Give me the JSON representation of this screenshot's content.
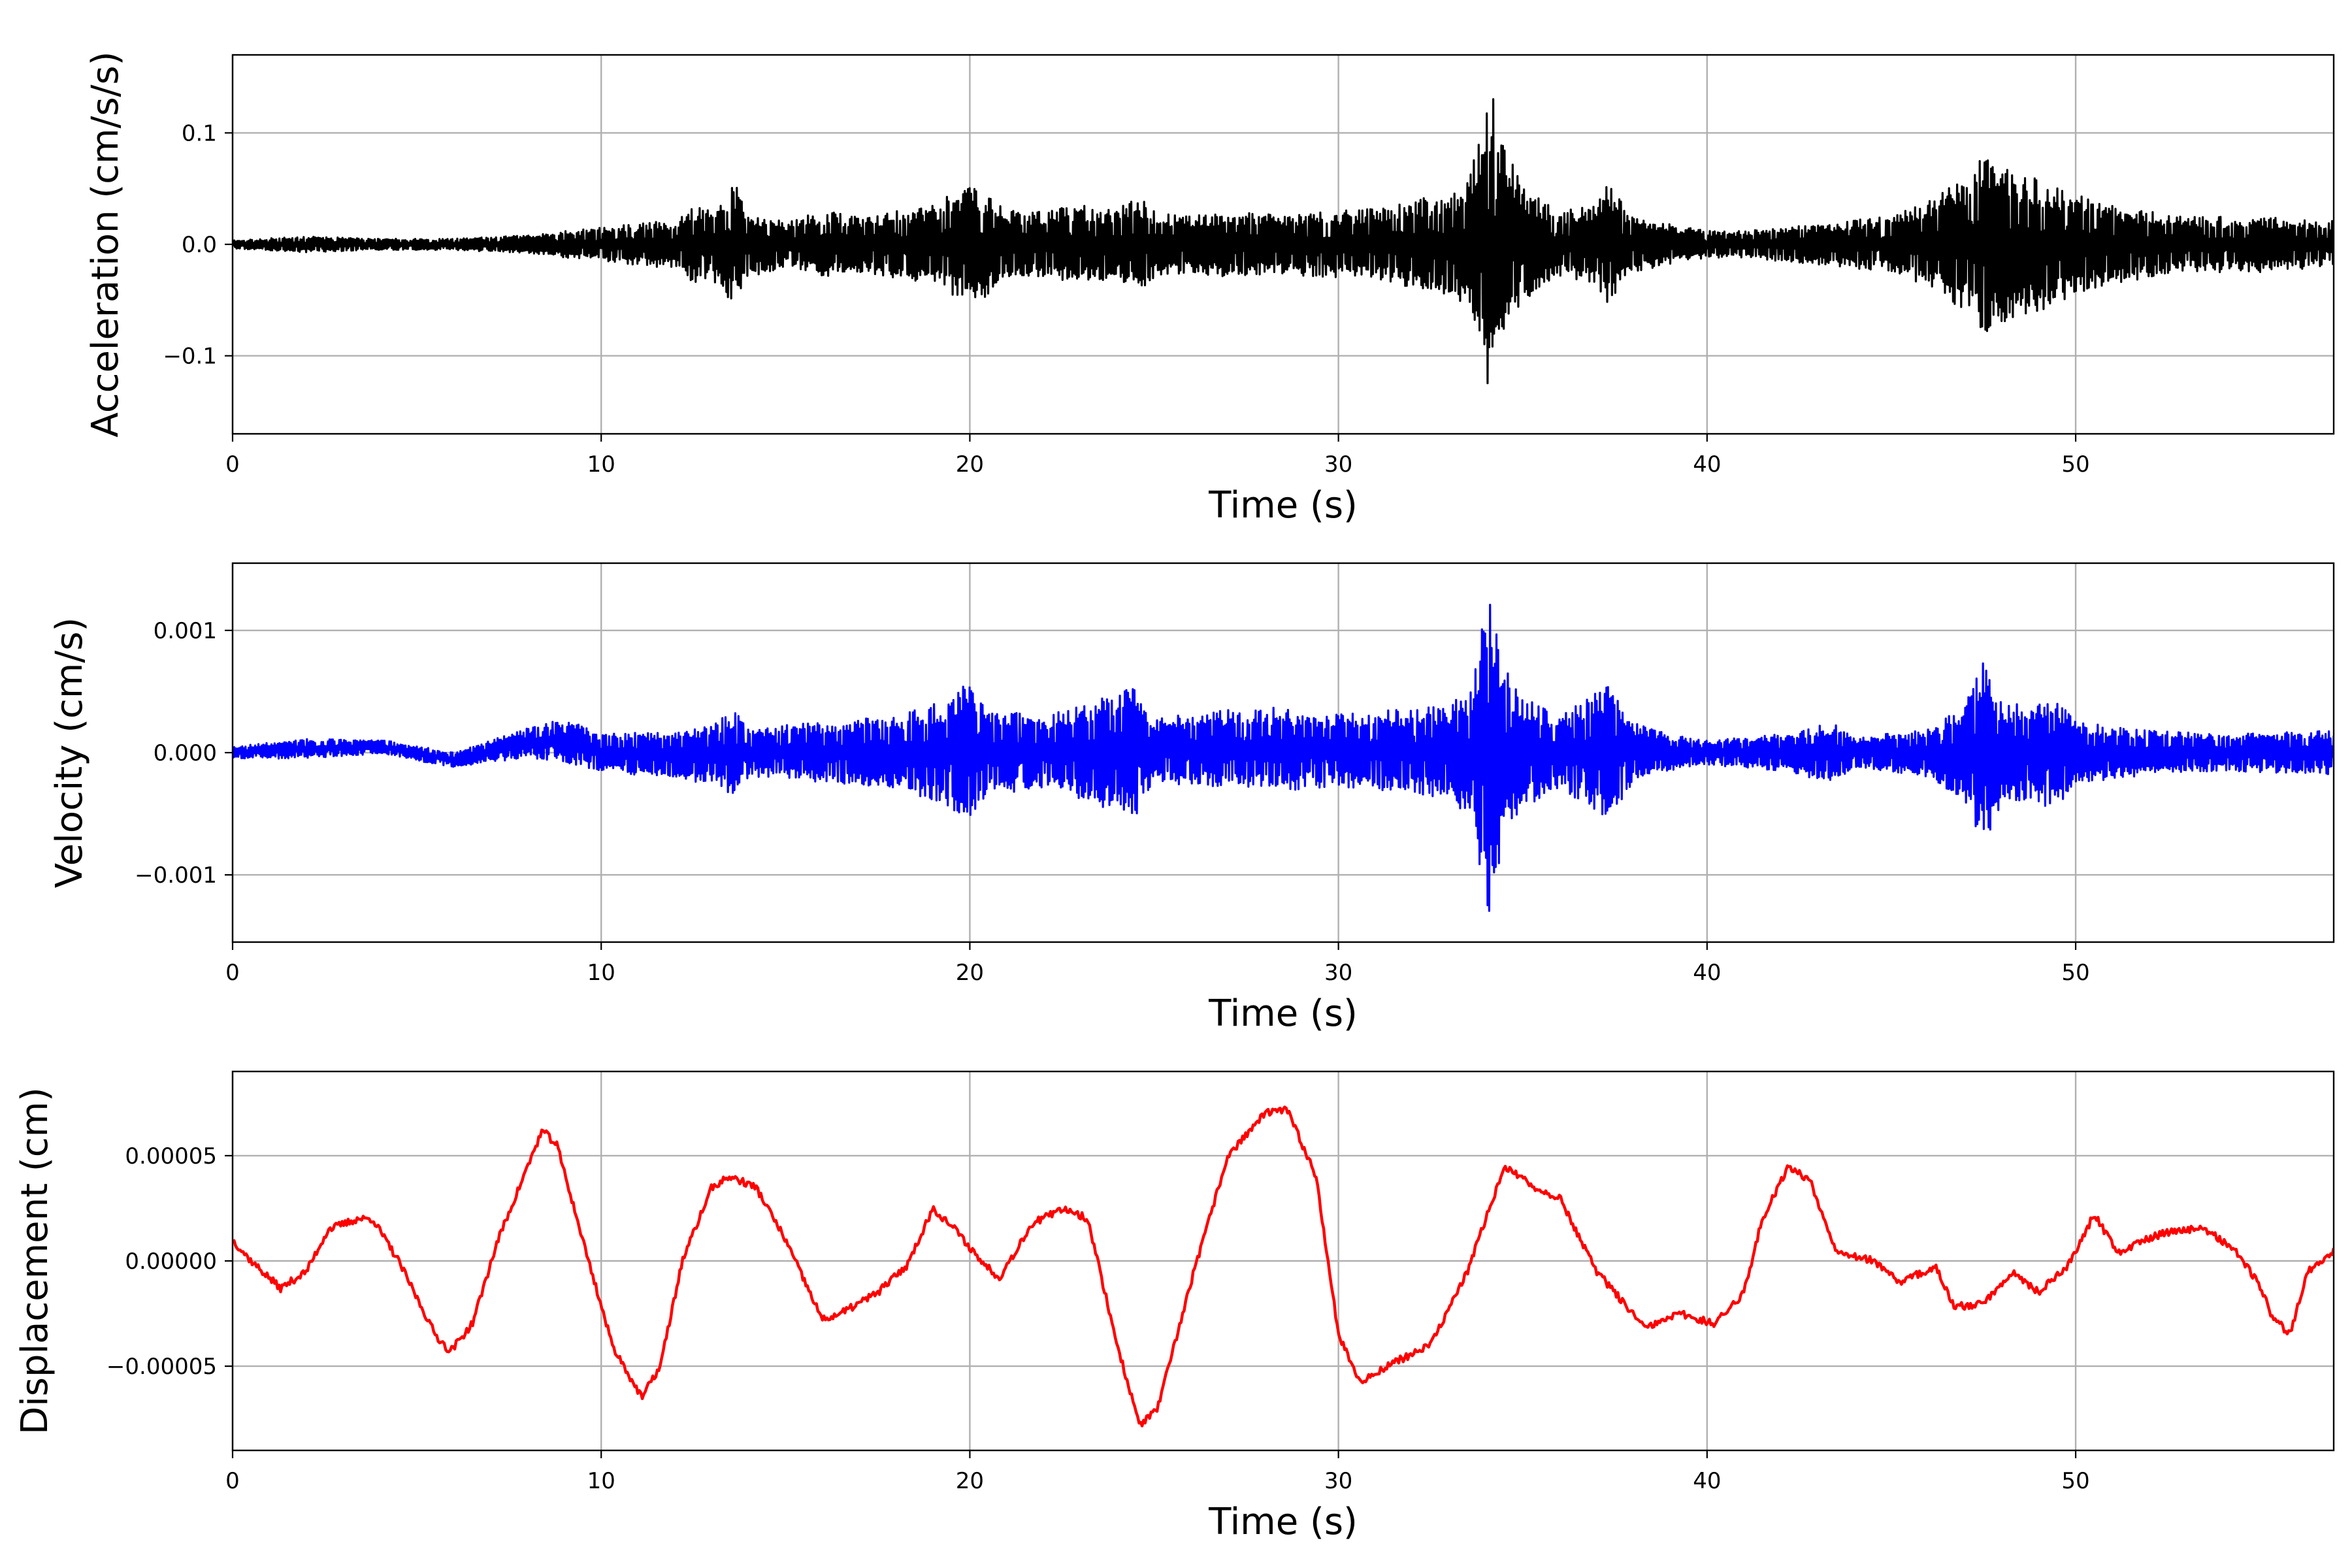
{
  "chart_data": [
    {
      "type": "line",
      "ylabel": "Acceleration (cm/s/s)",
      "xlabel": "Time (s)",
      "xlim": [
        0,
        57
      ],
      "ylim": [
        -0.17,
        0.17
      ],
      "x_ticks": [
        0,
        10,
        20,
        30,
        40,
        50
      ],
      "x_tick_labels": [
        "0",
        "10",
        "20",
        "30",
        "40",
        "50"
      ],
      "y_ticks": [
        -0.1,
        0.0,
        0.1
      ],
      "y_tick_labels": [
        "−0.1",
        "0.0",
        "0.1"
      ],
      "grid": true,
      "color": "#000000",
      "series": [
        {
          "envelope": [
            [
              0,
              0.004
            ],
            [
              2,
              0.007
            ],
            [
              4,
              0.005
            ],
            [
              6,
              0.005
            ],
            [
              8,
              0.008
            ],
            [
              9,
              0.012
            ],
            [
              10,
              0.015
            ],
            [
              12,
              0.022
            ],
            [
              12.5,
              0.035
            ],
            [
              13,
              0.03
            ],
            [
              13.6,
              0.058
            ],
            [
              14,
              0.03
            ],
            [
              15,
              0.02
            ],
            [
              16,
              0.03
            ],
            [
              17,
              0.025
            ],
            [
              18,
              0.03
            ],
            [
              19,
              0.035
            ],
            [
              19.5,
              0.045
            ],
            [
              20,
              0.058
            ],
            [
              20.5,
              0.045
            ],
            [
              21,
              0.03
            ],
            [
              22,
              0.03
            ],
            [
              23,
              0.035
            ],
            [
              24,
              0.03
            ],
            [
              24.5,
              0.045
            ],
            [
              25,
              0.03
            ],
            [
              26,
              0.025
            ],
            [
              27,
              0.03
            ],
            [
              28,
              0.028
            ],
            [
              29,
              0.028
            ],
            [
              30,
              0.03
            ],
            [
              31,
              0.032
            ],
            [
              32,
              0.04
            ],
            [
              33,
              0.045
            ],
            [
              33.6,
              0.065
            ],
            [
              34.1,
              0.145
            ],
            [
              34.5,
              0.09
            ],
            [
              35,
              0.05
            ],
            [
              36,
              0.03
            ],
            [
              37,
              0.035
            ],
            [
              37.3,
              0.055
            ],
            [
              38,
              0.025
            ],
            [
              39,
              0.018
            ],
            [
              40,
              0.012
            ],
            [
              41,
              0.012
            ],
            [
              42,
              0.015
            ],
            [
              43,
              0.018
            ],
            [
              44,
              0.022
            ],
            [
              45,
              0.025
            ],
            [
              46,
              0.04
            ],
            [
              47,
              0.06
            ],
            [
              47.5,
              0.085
            ],
            [
              48,
              0.07
            ],
            [
              49,
              0.06
            ],
            [
              50,
              0.045
            ],
            [
              51,
              0.035
            ],
            [
              52,
              0.03
            ],
            [
              53,
              0.025
            ],
            [
              54,
              0.025
            ],
            [
              55,
              0.025
            ],
            [
              56,
              0.022
            ],
            [
              57,
              0.022
            ]
          ]
        }
      ]
    },
    {
      "type": "line",
      "ylabel": "Velocity (cm/s)",
      "xlabel": "Time (s)",
      "xlim": [
        0,
        57
      ],
      "ylim": [
        -0.00155,
        0.00155
      ],
      "x_ticks": [
        0,
        10,
        20,
        30,
        40,
        50
      ],
      "x_tick_labels": [
        "0",
        "10",
        "20",
        "30",
        "40",
        "50"
      ],
      "y_ticks": [
        -0.001,
        0.0,
        0.001
      ],
      "y_tick_labels": [
        "−0.001",
        "0.000",
        "0.001"
      ],
      "grid": true,
      "color": "#0000ff",
      "series": [
        {
          "baseline": [
            [
              0,
              0.0
            ],
            [
              2,
              3e-05
            ],
            [
              4,
              5e-05
            ],
            [
              6,
              -6e-05
            ],
            [
              8,
              8e-05
            ],
            [
              9,
              0.0001
            ],
            [
              10,
              0.0
            ],
            [
              12,
              -2e-05
            ],
            [
              14,
              0.0
            ],
            [
              20,
              0.0
            ],
            [
              28,
              3e-05
            ],
            [
              34,
              0.0
            ],
            [
              40,
              0.0
            ],
            [
              47,
              0.0
            ],
            [
              57,
              0.0
            ]
          ],
          "envelope": [
            [
              0,
              5e-05
            ],
            [
              2,
              8e-05
            ],
            [
              4,
              6e-05
            ],
            [
              6,
              6e-05
            ],
            [
              8,
              0.00012
            ],
            [
              9,
              0.00018
            ],
            [
              10,
              0.00015
            ],
            [
              12,
              0.0002
            ],
            [
              13,
              0.00025
            ],
            [
              13.6,
              0.00035
            ],
            [
              14,
              0.0002
            ],
            [
              16,
              0.00025
            ],
            [
              18,
              0.0003
            ],
            [
              19.5,
              0.00045
            ],
            [
              20,
              0.0006
            ],
            [
              20.5,
              0.00035
            ],
            [
              22,
              0.0003
            ],
            [
              23,
              0.0004
            ],
            [
              24.5,
              0.00055
            ],
            [
              25,
              0.00025
            ],
            [
              26,
              0.0003
            ],
            [
              28,
              0.00035
            ],
            [
              30,
              0.0003
            ],
            [
              32,
              0.00035
            ],
            [
              33,
              0.0004
            ],
            [
              33.6,
              0.00055
            ],
            [
              34.1,
              0.00135
            ],
            [
              34.5,
              0.0007
            ],
            [
              35,
              0.00045
            ],
            [
              36,
              0.0003
            ],
            [
              37.3,
              0.00055
            ],
            [
              38,
              0.00025
            ],
            [
              39,
              0.00015
            ],
            [
              40,
              0.0001
            ],
            [
              42,
              0.00015
            ],
            [
              43.5,
              0.00025
            ],
            [
              44,
              0.00012
            ],
            [
              46,
              0.0002
            ],
            [
              47,
              0.0004
            ],
            [
              47.5,
              0.0008
            ],
            [
              48,
              0.0004
            ],
            [
              49,
              0.0004
            ],
            [
              49.4,
              0.0005
            ],
            [
              50,
              0.00025
            ],
            [
              52,
              0.00018
            ],
            [
              54,
              0.00015
            ],
            [
              57,
              0.00018
            ]
          ]
        }
      ]
    },
    {
      "type": "line",
      "ylabel": "Displacement (cm)",
      "xlabel": "Time (s)",
      "xlim": [
        0,
        57
      ],
      "ylim": [
        -9e-05,
        9e-05
      ],
      "x_ticks": [
        0,
        10,
        20,
        30,
        40,
        50
      ],
      "x_tick_labels": [
        "0",
        "10",
        "20",
        "30",
        "40",
        "50"
      ],
      "y_ticks": [
        -5e-05,
        0.0,
        5e-05
      ],
      "y_tick_labels": [
        "−0.00005",
        "0.00000",
        "0.00005"
      ],
      "grid": true,
      "color": "#ff0000",
      "series": [
        {
          "x": [
            0,
            0.5,
            1.3,
            2,
            2.6,
            3.4,
            3.8,
            4.5,
            5.5,
            5.9,
            6.5,
            7.2,
            8.4,
            8.8,
            9.5,
            10.3,
            11.1,
            11.6,
            12.2,
            13,
            13.5,
            14.2,
            15,
            16,
            16.5,
            17.5,
            18.3,
            19,
            19.6,
            20.3,
            20.8,
            21.7,
            22.6,
            23.2,
            24,
            24.6,
            25.1,
            26,
            27,
            28,
            28.6,
            29.4,
            30,
            30.6,
            31.3,
            32.5,
            33.5,
            34.5,
            35.3,
            36,
            37,
            37.5,
            38.3,
            39.3,
            40.2,
            41,
            41.5,
            42.2,
            42.8,
            43.5,
            44.5,
            45.2,
            46.2,
            46.7,
            47.5,
            48.3,
            49,
            49.8,
            50.5,
            51.2,
            51.8,
            52.8,
            53.5,
            54.3,
            55,
            55.3,
            55.8,
            56.3,
            57
          ],
          "y": [
            1e-05,
            0.0,
            -1.3e-05,
            -5e-06,
            1.5e-05,
            2e-05,
            2e-05,
            0.0,
            -3.5e-05,
            -4.3e-05,
            -3e-05,
            1e-05,
            6.2e-05,
            5.5e-05,
            1e-05,
            -4e-05,
            -6.5e-05,
            -5e-05,
            0.0,
            3.5e-05,
            4e-05,
            3.5e-05,
            1e-05,
            -2.8e-05,
            -2.5e-05,
            -1.5e-05,
            -2e-06,
            2.5e-05,
            1.5e-05,
            0.0,
            -8e-06,
            1.8e-05,
            2.5e-05,
            2e-05,
            -4e-05,
            -7.8e-05,
            -7e-05,
            -1e-05,
            5e-05,
            7e-05,
            7.2e-05,
            4e-05,
            -3.5e-05,
            -5.8e-05,
            -5e-05,
            -4e-05,
            -5e-06,
            4.5e-05,
            3.5e-05,
            3e-05,
            -5e-06,
            -1.5e-05,
            -3.2e-05,
            -2.5e-05,
            -3e-05,
            -1.5e-05,
            2e-05,
            4.5e-05,
            3.8e-05,
            5e-06,
            0.0,
            -1e-05,
            -3e-06,
            -2.2e-05,
            -2e-05,
            -5e-06,
            -1.5e-05,
            -2e-06,
            2.2e-05,
            3e-06,
            1e-05,
            1.5e-05,
            1.5e-05,
            6e-06,
            -1.2e-05,
            -2.5e-05,
            -3.5e-05,
            -5e-06,
            5e-06
          ]
        }
      ]
    }
  ]
}
